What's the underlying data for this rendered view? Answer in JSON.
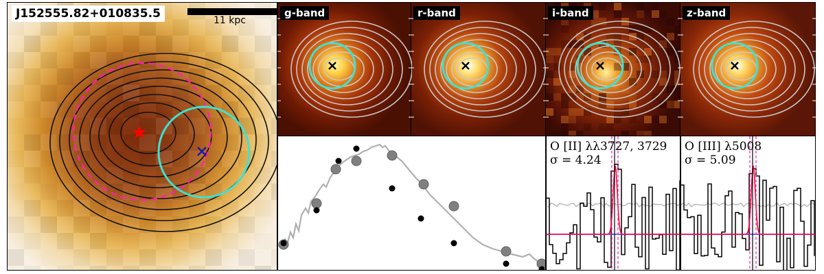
{
  "object": {
    "name": "J152555.82+010835.5",
    "scale_label": "11 kpc"
  },
  "bands": [
    {
      "label": "g-band"
    },
    {
      "label": "r-band"
    },
    {
      "label": "i-band"
    },
    {
      "label": "z-band"
    }
  ],
  "spectra": {
    "oii": {
      "line": "O [II] λλ3727, 3729",
      "sigma": "σ = 4.24"
    },
    "oiii": {
      "line": "O [III] λ5008",
      "sigma": "σ = 5.09"
    }
  },
  "colors": {
    "aperture": "#40e0d0",
    "dashed_ellipse": "#ff1fb4",
    "star_marker": "#ff0000",
    "cross_marker": "#1a1aa8",
    "sed_model": "#b0b0b0",
    "sed_points_model": "#808080",
    "sed_points_obs": "#000000",
    "fit_line": "#ff0033",
    "continuum_line": "#3333ff"
  },
  "icons": {
    "star": "star-icon",
    "cross": "cross-icon"
  }
}
